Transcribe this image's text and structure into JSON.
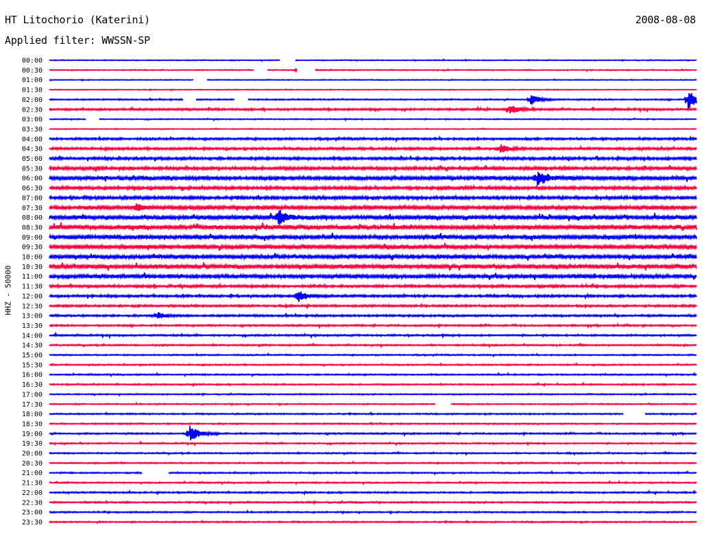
{
  "header": {
    "station": "HT Litochorio (Katerini)",
    "date": "2008-08-08",
    "filter": "Applied filter: WWSSN-SP"
  },
  "chart_data": {
    "type": "line",
    "ylabel": "HHZ - 50000",
    "colors": [
      "#0000ff",
      "#ff0040"
    ],
    "row_labels": [
      "00:00",
      "00:30",
      "01:00",
      "01:30",
      "02:00",
      "02:30",
      "03:00",
      "03:30",
      "04:00",
      "04:30",
      "05:00",
      "05:30",
      "06:00",
      "06:30",
      "07:00",
      "07:30",
      "08:00",
      "08:30",
      "09:00",
      "09:30",
      "10:00",
      "10:30",
      "11:00",
      "11:30",
      "12:00",
      "12:30",
      "13:00",
      "13:30",
      "14:00",
      "14:30",
      "15:00",
      "15:30",
      "16:00",
      "16:30",
      "17:00",
      "17:30",
      "18:00",
      "18:30",
      "19:00",
      "19:30",
      "20:00",
      "20:30",
      "21:00",
      "21:30",
      "22:00",
      "22:30",
      "23:00",
      "23:30"
    ],
    "noise_level": [
      0.5,
      0.6,
      0.5,
      0.5,
      0.8,
      1.2,
      0.6,
      0.5,
      1.3,
      1.4,
      1.6,
      1.8,
      2.2,
      1.8,
      1.8,
      2.2,
      2.4,
      2.5,
      2.4,
      2.4,
      2.3,
      2.4,
      2.2,
      1.5,
      1.4,
      1.2,
      1.2,
      1.0,
      1.0,
      0.9,
      0.8,
      0.8,
      0.8,
      0.8,
      0.7,
      0.7,
      0.8,
      0.8,
      0.9,
      0.8,
      0.8,
      0.8,
      0.8,
      0.8,
      0.9,
      0.9,
      0.8,
      0.8
    ],
    "events": [
      {
        "row": 1,
        "minute": 11.5,
        "amplitude": 5
      },
      {
        "row": 4,
        "minute": 22.3,
        "amplitude": 8
      },
      {
        "row": 4,
        "minute": 29.6,
        "amplitude": 16
      },
      {
        "row": 5,
        "minute": 21.3,
        "amplitude": 7
      },
      {
        "row": 9,
        "minute": 20.9,
        "amplitude": 6
      },
      {
        "row": 12,
        "minute": 22.6,
        "amplitude": 12
      },
      {
        "row": 15,
        "minute": 4.0,
        "amplitude": 5
      },
      {
        "row": 16,
        "minute": 10.6,
        "amplitude": 11
      },
      {
        "row": 24,
        "minute": 11.5,
        "amplitude": 10
      },
      {
        "row": 26,
        "minute": 5.0,
        "amplitude": 5
      },
      {
        "row": 38,
        "minute": 6.5,
        "amplitude": 14
      }
    ],
    "gaps": [
      {
        "row": 0,
        "start": 10.7,
        "end": 11.4
      },
      {
        "row": 1,
        "start": 9.5,
        "end": 10.1
      },
      {
        "row": 1,
        "start": 11.5,
        "end": 12.3
      },
      {
        "row": 2,
        "start": 6.7,
        "end": 7.3
      },
      {
        "row": 4,
        "start": 6.2,
        "end": 6.8
      },
      {
        "row": 4,
        "start": 8.6,
        "end": 9.2
      },
      {
        "row": 6,
        "start": 1.7,
        "end": 2.3
      },
      {
        "row": 35,
        "start": 17.9,
        "end": 18.6
      },
      {
        "row": 36,
        "start": 26.6,
        "end": 27.6
      },
      {
        "row": 42,
        "start": 4.3,
        "end": 5.5
      }
    ]
  }
}
